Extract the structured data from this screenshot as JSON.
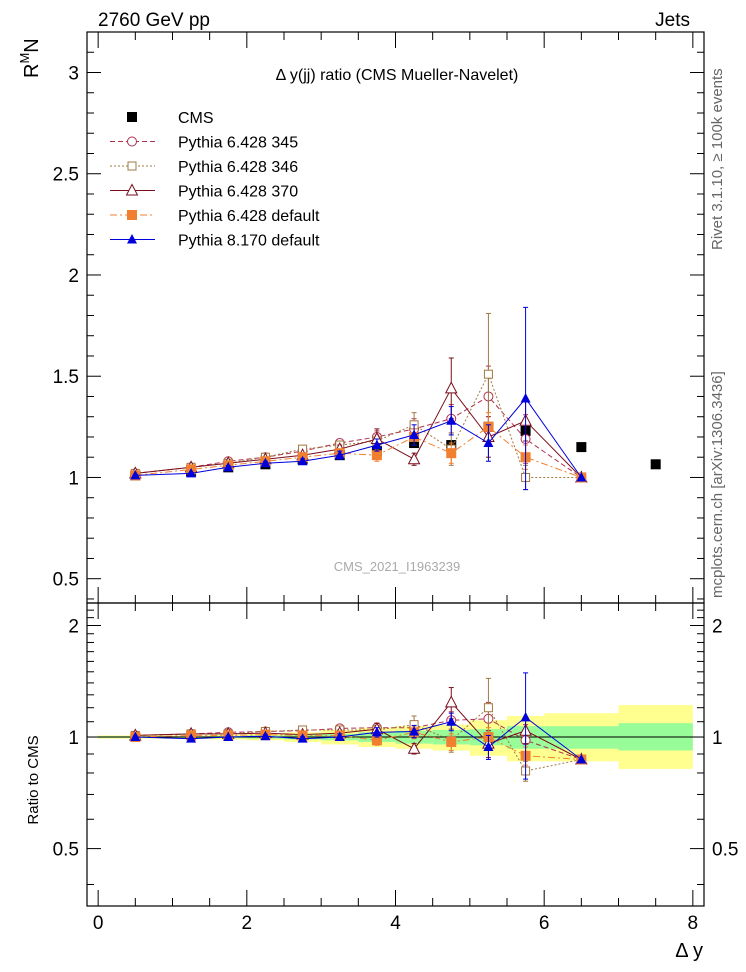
{
  "header": {
    "left": "2760 GeV pp",
    "right": "Jets"
  },
  "side_labels": {
    "rivet": "Rivet 3.1.10, ≥ 100k events",
    "mcplots": "mcplots.cern.ch [arXiv:1306.3436]"
  },
  "watermark": "CMS_2021_I1963239",
  "colors": {
    "cms": "#000000",
    "p345": "#b03050",
    "p346": "#a07840",
    "p370": "#7a0e1c",
    "p6def": "#f08030",
    "p8def": "#0000dd",
    "band_inner": "#98fc98",
    "band_outer": "#ffff90"
  },
  "chart_data": [
    {
      "type": "scatter",
      "title": "Δ y(jj) ratio (CMS Mueller-Navelet)",
      "ylabel_main": "R",
      "ylabel_sup": "M",
      "ylabel_tail": "N",
      "xlim": [
        -0.15,
        8.15
      ],
      "ylim": [
        0.38,
        3.2
      ],
      "yticks": [
        0.5,
        1,
        1.5,
        2,
        2.5,
        3
      ],
      "ytick_labels": [
        "0.5",
        "1",
        "1.5",
        "2",
        "2.5",
        "3"
      ],
      "legend_position": "top-left",
      "series": [
        {
          "name": "CMS",
          "key": "cms",
          "marker": "square-filled",
          "line": "none",
          "x": [
            0.5,
            1.25,
            1.75,
            2.25,
            2.75,
            3.25,
            3.75,
            4.25,
            4.75,
            5.25,
            5.75,
            6.5,
            7.5
          ],
          "y": [
            1.01,
            1.03,
            1.05,
            1.065,
            1.09,
            1.11,
            1.13,
            1.17,
            1.16,
            1.25,
            1.23,
            1.15,
            1.065
          ],
          "err": [
            0,
            0,
            0,
            0,
            0,
            0,
            0,
            0,
            0,
            0,
            0,
            0,
            0
          ]
        },
        {
          "name": "Pythia 6.428 345",
          "key": "p345",
          "marker": "circle-open",
          "line": "dashed",
          "x": [
            0.5,
            1.25,
            1.75,
            2.25,
            2.75,
            3.25,
            3.75,
            4.25,
            4.75,
            5.25,
            5.75,
            6.5
          ],
          "y": [
            1.02,
            1.05,
            1.08,
            1.1,
            1.13,
            1.17,
            1.2,
            1.24,
            1.29,
            1.4,
            1.19,
            1.0
          ],
          "err": [
            0.005,
            0.005,
            0.008,
            0.01,
            0.015,
            0.02,
            0.03,
            0.05,
            0.07,
            0.15,
            0.12,
            0.0
          ]
        },
        {
          "name": "Pythia 6.428 346",
          "key": "p346",
          "marker": "square-open",
          "line": "dotted",
          "x": [
            0.5,
            1.25,
            1.75,
            2.25,
            2.75,
            3.25,
            3.75,
            4.25,
            4.75,
            5.25,
            5.75,
            6.5
          ],
          "y": [
            1.02,
            1.05,
            1.07,
            1.1,
            1.14,
            1.16,
            1.18,
            1.26,
            1.14,
            1.51,
            1.0,
            1.0
          ],
          "err": [
            0.005,
            0.006,
            0.008,
            0.01,
            0.015,
            0.02,
            0.03,
            0.06,
            0.08,
            0.3,
            0.06,
            0.0
          ]
        },
        {
          "name": "Pythia 6.428 370",
          "key": "p370",
          "marker": "triangle-open",
          "line": "solid",
          "x": [
            0.5,
            1.25,
            1.75,
            2.25,
            2.75,
            3.25,
            3.75,
            4.25,
            4.75,
            5.25,
            5.75,
            6.5
          ],
          "y": [
            1.02,
            1.05,
            1.07,
            1.09,
            1.11,
            1.14,
            1.19,
            1.09,
            1.44,
            1.2,
            1.28,
            1.0
          ],
          "err": [
            0.005,
            0.005,
            0.008,
            0.01,
            0.012,
            0.02,
            0.05,
            0.03,
            0.15,
            0.1,
            0.1,
            0.0
          ]
        },
        {
          "name": "Pythia 6.428 default",
          "key": "p6def",
          "marker": "square-filled",
          "line": "dashdot",
          "x": [
            0.5,
            1.25,
            1.75,
            2.25,
            2.75,
            3.25,
            3.75,
            4.25,
            4.75,
            5.25,
            5.75,
            6.5
          ],
          "y": [
            1.01,
            1.04,
            1.06,
            1.08,
            1.1,
            1.12,
            1.11,
            1.2,
            1.12,
            1.25,
            1.1,
            1.0
          ],
          "err": [
            0.005,
            0.005,
            0.008,
            0.01,
            0.012,
            0.02,
            0.03,
            0.04,
            0.05,
            0.07,
            0.06,
            0.0
          ]
        },
        {
          "name": "Pythia 8.170 default",
          "key": "p8def",
          "marker": "triangle-filled",
          "line": "solid",
          "x": [
            0.5,
            1.25,
            1.75,
            2.25,
            2.75,
            3.25,
            3.75,
            4.25,
            4.75,
            5.25,
            5.75,
            6.5
          ],
          "y": [
            1.01,
            1.02,
            1.05,
            1.07,
            1.08,
            1.11,
            1.16,
            1.21,
            1.28,
            1.17,
            1.39,
            1.0
          ],
          "err": [
            0.005,
            0.005,
            0.008,
            0.01,
            0.012,
            0.02,
            0.03,
            0.05,
            0.07,
            0.09,
            0.45,
            0.0
          ]
        }
      ]
    },
    {
      "type": "scatter",
      "ylabel": "Ratio to CMS",
      "xlabel": "Δ y",
      "xlim": [
        -0.15,
        8.15
      ],
      "ylim": [
        0.35,
        2.3
      ],
      "yticks": [
        0.5,
        1,
        2
      ],
      "ytick_labels": [
        "0.5",
        "1",
        "2"
      ],
      "xticks": [
        0,
        2,
        4,
        6,
        8
      ],
      "xtick_labels": [
        "0",
        "2",
        "4",
        "6",
        "8"
      ],
      "bands": [
        {
          "x0": 0.0,
          "x1": 1.0,
          "inner": [
            0.995,
            1.005
          ],
          "outer": [
            0.99,
            1.01
          ]
        },
        {
          "x0": 1.0,
          "x1": 1.5,
          "inner": [
            0.995,
            1.005
          ],
          "outer": [
            0.99,
            1.01
          ]
        },
        {
          "x0": 1.5,
          "x1": 2.0,
          "inner": [
            0.993,
            1.007
          ],
          "outer": [
            0.985,
            1.015
          ]
        },
        {
          "x0": 2.0,
          "x1": 2.5,
          "inner": [
            0.99,
            1.01
          ],
          "outer": [
            0.98,
            1.02
          ]
        },
        {
          "x0": 2.5,
          "x1": 3.0,
          "inner": [
            0.985,
            1.015
          ],
          "outer": [
            0.97,
            1.03
          ]
        },
        {
          "x0": 3.0,
          "x1": 3.5,
          "inner": [
            0.98,
            1.02
          ],
          "outer": [
            0.955,
            1.045
          ]
        },
        {
          "x0": 3.5,
          "x1": 4.0,
          "inner": [
            0.97,
            1.03
          ],
          "outer": [
            0.94,
            1.06
          ]
        },
        {
          "x0": 4.0,
          "x1": 4.5,
          "inner": [
            0.96,
            1.04
          ],
          "outer": [
            0.93,
            1.07
          ]
        },
        {
          "x0": 4.5,
          "x1": 5.0,
          "inner": [
            0.955,
            1.045
          ],
          "outer": [
            0.92,
            1.08
          ]
        },
        {
          "x0": 5.0,
          "x1": 5.5,
          "inner": [
            0.95,
            1.05
          ],
          "outer": [
            0.89,
            1.11
          ]
        },
        {
          "x0": 5.5,
          "x1": 6.0,
          "inner": [
            0.93,
            1.07
          ],
          "outer": [
            0.86,
            1.14
          ]
        },
        {
          "x0": 6.0,
          "x1": 7.0,
          "inner": [
            0.93,
            1.07
          ],
          "outer": [
            0.86,
            1.16
          ]
        },
        {
          "x0": 7.0,
          "x1": 8.0,
          "inner": [
            0.92,
            1.09
          ],
          "outer": [
            0.82,
            1.22
          ]
        }
      ],
      "series": [
        {
          "name": "Pythia 6.428 345",
          "key": "p345",
          "marker": "circle-open",
          "line": "dashed",
          "x": [
            0.5,
            1.25,
            1.75,
            2.25,
            2.75,
            3.25,
            3.75,
            4.25,
            4.75,
            5.25,
            5.75,
            6.5
          ],
          "y": [
            1.01,
            1.02,
            1.03,
            1.035,
            1.04,
            1.055,
            1.06,
            1.06,
            1.11,
            1.12,
            0.98,
            0.87
          ],
          "err": [
            0.005,
            0.005,
            0.008,
            0.01,
            0.015,
            0.02,
            0.03,
            0.04,
            0.06,
            0.12,
            0.1,
            0.0
          ]
        },
        {
          "name": "Pythia 6.428 346",
          "key": "p346",
          "marker": "square-open",
          "line": "dotted",
          "x": [
            0.5,
            1.25,
            1.75,
            2.25,
            2.75,
            3.25,
            3.75,
            4.25,
            4.75,
            5.25,
            5.75,
            6.5
          ],
          "y": [
            1.01,
            1.02,
            1.02,
            1.035,
            1.045,
            1.045,
            1.045,
            1.08,
            0.98,
            1.2,
            0.81,
            0.87
          ],
          "err": [
            0.005,
            0.006,
            0.008,
            0.01,
            0.015,
            0.02,
            0.03,
            0.06,
            0.07,
            0.24,
            0.05,
            0.0
          ]
        },
        {
          "name": "Pythia 6.428 370",
          "key": "p370",
          "marker": "triangle-open",
          "line": "solid",
          "x": [
            0.5,
            1.25,
            1.75,
            2.25,
            2.75,
            3.25,
            3.75,
            4.25,
            4.75,
            5.25,
            5.75,
            6.5
          ],
          "y": [
            1.01,
            1.02,
            1.02,
            1.025,
            1.015,
            1.025,
            1.05,
            0.93,
            1.24,
            0.96,
            1.04,
            0.87
          ],
          "err": [
            0.005,
            0.005,
            0.008,
            0.01,
            0.012,
            0.02,
            0.04,
            0.03,
            0.12,
            0.08,
            0.08,
            0.0
          ]
        },
        {
          "name": "Pythia 6.428 default",
          "key": "p6def",
          "marker": "square-filled",
          "line": "dashdot",
          "x": [
            0.5,
            1.25,
            1.75,
            2.25,
            2.75,
            3.25,
            3.75,
            4.25,
            4.75,
            5.25,
            5.75,
            6.5
          ],
          "y": [
            1.0,
            1.01,
            1.01,
            1.015,
            1.01,
            1.01,
            0.98,
            1.03,
            0.97,
            1.0,
            0.89,
            0.87
          ],
          "err": [
            0.005,
            0.005,
            0.008,
            0.01,
            0.012,
            0.02,
            0.03,
            0.04,
            0.05,
            0.06,
            0.05,
            0.0
          ]
        },
        {
          "name": "Pythia 8.170 default",
          "key": "p8def",
          "marker": "triangle-filled",
          "line": "solid",
          "x": [
            0.5,
            1.25,
            1.75,
            2.25,
            2.75,
            3.25,
            3.75,
            4.25,
            4.75,
            5.25,
            5.75,
            6.5
          ],
          "y": [
            1.0,
            0.99,
            1.0,
            1.005,
            0.99,
            1.0,
            1.03,
            1.035,
            1.1,
            0.94,
            1.13,
            0.87
          ],
          "err": [
            0.005,
            0.005,
            0.008,
            0.01,
            0.012,
            0.02,
            0.03,
            0.04,
            0.06,
            0.07,
            0.36,
            0.0
          ]
        }
      ]
    }
  ]
}
